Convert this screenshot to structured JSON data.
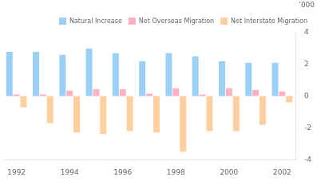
{
  "chart_data": {
    "type": "bar",
    "ylabel": "’000",
    "categories": [
      "1992",
      null,
      "1994",
      null,
      "1996",
      null,
      "1998",
      null,
      "2000",
      null,
      "2002"
    ],
    "series": [
      {
        "name": "Natural Increase",
        "values": [
          2.8,
          2.8,
          2.6,
          3.0,
          2.7,
          2.2,
          2.7,
          2.5,
          2.2,
          2.1,
          2.1
        ]
      },
      {
        "name": "Net Overseas Migration",
        "values": [
          0.1,
          0.1,
          0.35,
          0.45,
          0.45,
          0.15,
          0.5,
          0.1,
          0.5,
          0.4,
          0.3
        ]
      },
      {
        "name": "Net Interstate Migration",
        "values": [
          -0.7,
          -1.7,
          -2.3,
          -2.4,
          -2.2,
          -2.3,
          -3.5,
          -2.2,
          -2.2,
          -1.8,
          -0.4
        ]
      }
    ],
    "ylim": [
      -4,
      4
    ],
    "yticks": [
      -4,
      -2,
      0,
      2,
      4
    ],
    "grid": false,
    "legend": "upper right"
  }
}
